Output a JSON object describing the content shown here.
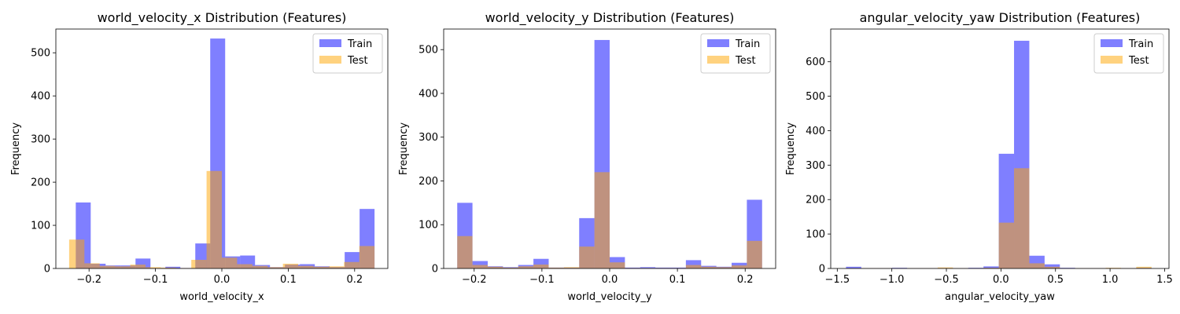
{
  "colors": {
    "train": "#0000ff",
    "test": "#ffa500"
  },
  "chart_data": [
    {
      "type": "histogram",
      "title": "world_velocity_x Distribution (Features)",
      "xlabel": "world_velocity_x",
      "ylabel": "Frequency",
      "xlim": [
        -0.25,
        0.25
      ],
      "ylim": [
        0,
        555
      ],
      "xticks": [
        -0.2,
        -0.1,
        0.0,
        0.1,
        0.2
      ],
      "xtick_labels": [
        "−0.2",
        "−0.1",
        "0.0",
        "0.1",
        "0.2"
      ],
      "yticks": [
        0,
        100,
        200,
        300,
        400,
        500
      ],
      "ytick_labels": [
        "0",
        "100",
        "200",
        "300",
        "400",
        "500"
      ],
      "legend": {
        "position": "top-right",
        "entries": [
          "Train",
          "Test"
        ]
      },
      "series": [
        {
          "name": "Train",
          "bins": [
            [
              -0.22,
              -0.1975,
              153
            ],
            [
              -0.1975,
              -0.175,
              11
            ],
            [
              -0.175,
              -0.1525,
              7
            ],
            [
              -0.1525,
              -0.13,
              7
            ],
            [
              -0.13,
              -0.1075,
              23
            ],
            [
              -0.1075,
              -0.085,
              1
            ],
            [
              -0.085,
              -0.0625,
              4
            ],
            [
              -0.0625,
              -0.04,
              1
            ],
            [
              -0.04,
              -0.0175,
              58
            ],
            [
              -0.0175,
              0.005,
              533
            ],
            [
              0.005,
              0.0275,
              28
            ],
            [
              0.0275,
              0.05,
              30
            ],
            [
              0.05,
              0.0725,
              8
            ],
            [
              0.0725,
              0.095,
              3
            ],
            [
              0.095,
              0.1175,
              9
            ],
            [
              0.1175,
              0.14,
              10
            ],
            [
              0.14,
              0.1625,
              5
            ],
            [
              0.1625,
              0.185,
              3
            ],
            [
              0.185,
              0.2075,
              38
            ],
            [
              0.2075,
              0.23,
              138
            ]
          ]
        },
        {
          "name": "Test",
          "bins": [
            [
              -0.23,
              -0.207,
              67
            ],
            [
              -0.207,
              -0.184,
              12
            ],
            [
              -0.184,
              -0.161,
              6
            ],
            [
              -0.161,
              -0.138,
              5
            ],
            [
              -0.138,
              -0.115,
              9
            ],
            [
              -0.115,
              -0.092,
              3
            ],
            [
              -0.092,
              -0.069,
              2
            ],
            [
              -0.069,
              -0.046,
              1
            ],
            [
              -0.046,
              -0.023,
              20
            ],
            [
              -0.023,
              0.0,
              226
            ],
            [
              0.0,
              0.023,
              25
            ],
            [
              0.023,
              0.046,
              10
            ],
            [
              0.046,
              0.069,
              6
            ],
            [
              0.069,
              0.092,
              3
            ],
            [
              0.092,
              0.115,
              11
            ],
            [
              0.115,
              0.138,
              6
            ],
            [
              0.138,
              0.161,
              4
            ],
            [
              0.161,
              0.184,
              5
            ],
            [
              0.184,
              0.207,
              15
            ],
            [
              0.207,
              0.23,
              52
            ]
          ]
        }
      ]
    },
    {
      "type": "histogram",
      "title": "world_velocity_y Distribution (Features)",
      "xlabel": "world_velocity_y",
      "ylabel": "Frequency",
      "xlim": [
        -0.245,
        0.245
      ],
      "ylim": [
        0,
        547
      ],
      "xticks": [
        -0.2,
        -0.1,
        0.0,
        0.1,
        0.2
      ],
      "xtick_labels": [
        "−0.2",
        "−0.1",
        "0.0",
        "0.1",
        "0.2"
      ],
      "yticks": [
        0,
        100,
        200,
        300,
        400,
        500
      ],
      "ytick_labels": [
        "0",
        "100",
        "200",
        "300",
        "400",
        "500"
      ],
      "legend": {
        "position": "top-right",
        "entries": [
          "Train",
          "Test"
        ]
      },
      "series": [
        {
          "name": "Train",
          "bins": [
            [
              -0.225,
              -0.2025,
              150
            ],
            [
              -0.2025,
              -0.18,
              17
            ],
            [
              -0.18,
              -0.1575,
              5
            ],
            [
              -0.1575,
              -0.135,
              3
            ],
            [
              -0.135,
              -0.1125,
              8
            ],
            [
              -0.1125,
              -0.09,
              22
            ],
            [
              -0.09,
              -0.0675,
              2
            ],
            [
              -0.0675,
              -0.045,
              2
            ],
            [
              -0.045,
              -0.0225,
              115
            ],
            [
              -0.0225,
              0.0,
              522
            ],
            [
              0.0,
              0.0225,
              26
            ],
            [
              0.0225,
              0.045,
              2
            ],
            [
              0.045,
              0.0675,
              3
            ],
            [
              0.0675,
              0.09,
              2
            ],
            [
              0.09,
              0.1125,
              2
            ],
            [
              0.1125,
              0.135,
              19
            ],
            [
              0.135,
              0.1575,
              6
            ],
            [
              0.1575,
              0.18,
              4
            ],
            [
              0.18,
              0.2025,
              13
            ],
            [
              0.2025,
              0.225,
              157
            ]
          ]
        },
        {
          "name": "Test",
          "bins": [
            [
              -0.225,
              -0.2025,
              74
            ],
            [
              -0.2025,
              -0.18,
              8
            ],
            [
              -0.18,
              -0.1575,
              4
            ],
            [
              -0.1575,
              -0.135,
              2
            ],
            [
              -0.135,
              -0.1125,
              5
            ],
            [
              -0.1125,
              -0.09,
              9
            ],
            [
              -0.09,
              -0.0675,
              2
            ],
            [
              -0.0675,
              -0.045,
              3
            ],
            [
              -0.045,
              -0.0225,
              50
            ],
            [
              -0.0225,
              0.0,
              220
            ],
            [
              0.0,
              0.0225,
              14
            ],
            [
              0.0225,
              0.045,
              1
            ],
            [
              0.045,
              0.0675,
              1
            ],
            [
              0.0675,
              0.09,
              1
            ],
            [
              0.09,
              0.1125,
              1
            ],
            [
              0.1125,
              0.135,
              8
            ],
            [
              0.135,
              0.1575,
              4
            ],
            [
              0.1575,
              0.18,
              3
            ],
            [
              0.18,
              0.2025,
              7
            ],
            [
              0.2025,
              0.225,
              63
            ]
          ]
        }
      ]
    },
    {
      "type": "histogram",
      "title": "angular_velocity_yaw Distribution (Features)",
      "xlabel": "angular_velocity_yaw",
      "ylabel": "Frequency",
      "xlim": [
        -1.56,
        1.54
      ],
      "ylim": [
        0,
        695
      ],
      "xticks": [
        -1.5,
        -1.0,
        -0.5,
        0.0,
        0.5,
        1.0,
        1.5
      ],
      "xtick_labels": [
        "−1.5",
        "−1.0",
        "−0.5",
        "0.0",
        "0.5",
        "1.0",
        "1.5"
      ],
      "yticks": [
        0,
        100,
        200,
        300,
        400,
        500,
        600
      ],
      "ytick_labels": [
        "0",
        "100",
        "200",
        "300",
        "400",
        "500",
        "600"
      ],
      "legend": {
        "position": "top-right",
        "entries": [
          "Train",
          "Test"
        ]
      },
      "series": [
        {
          "name": "Train",
          "bins": [
            [
              -1.42,
              -1.28,
              5
            ],
            [
              -1.28,
              -1.14,
              1
            ],
            [
              -1.14,
              -1.0,
              1
            ],
            [
              -1.0,
              -0.86,
              2
            ],
            [
              -0.86,
              -0.72,
              1
            ],
            [
              -0.72,
              -0.58,
              1
            ],
            [
              -0.58,
              -0.44,
              1
            ],
            [
              -0.44,
              -0.3,
              1
            ],
            [
              -0.3,
              -0.16,
              2
            ],
            [
              -0.16,
              -0.02,
              6
            ],
            [
              -0.02,
              0.12,
              333
            ],
            [
              0.12,
              0.26,
              661
            ],
            [
              0.26,
              0.4,
              37
            ],
            [
              0.4,
              0.54,
              12
            ],
            [
              0.54,
              0.68,
              2
            ],
            [
              0.68,
              0.82,
              1
            ],
            [
              0.82,
              0.96,
              1
            ],
            [
              0.96,
              1.1,
              1
            ],
            [
              1.1,
              1.24,
              1
            ],
            [
              1.24,
              1.38,
              2
            ]
          ]
        },
        {
          "name": "Test",
          "bins": [
            [
              -1.42,
              -1.28,
              1
            ],
            [
              -1.28,
              -1.14,
              1
            ],
            [
              -1.14,
              -1.0,
              1
            ],
            [
              -1.0,
              -0.86,
              1
            ],
            [
              -0.86,
              -0.72,
              1
            ],
            [
              -0.72,
              -0.58,
              1
            ],
            [
              -0.58,
              -0.44,
              3
            ],
            [
              -0.44,
              -0.3,
              1
            ],
            [
              -0.3,
              -0.16,
              1
            ],
            [
              -0.16,
              -0.02,
              2
            ],
            [
              -0.02,
              0.12,
              133
            ],
            [
              0.12,
              0.26,
              291
            ],
            [
              0.26,
              0.4,
              15
            ],
            [
              0.4,
              0.54,
              5
            ],
            [
              0.54,
              0.68,
              1
            ],
            [
              0.68,
              0.82,
              1
            ],
            [
              0.82,
              0.96,
              1
            ],
            [
              0.96,
              1.1,
              2
            ],
            [
              1.1,
              1.24,
              1
            ],
            [
              1.24,
              1.38,
              5
            ]
          ]
        }
      ]
    }
  ]
}
